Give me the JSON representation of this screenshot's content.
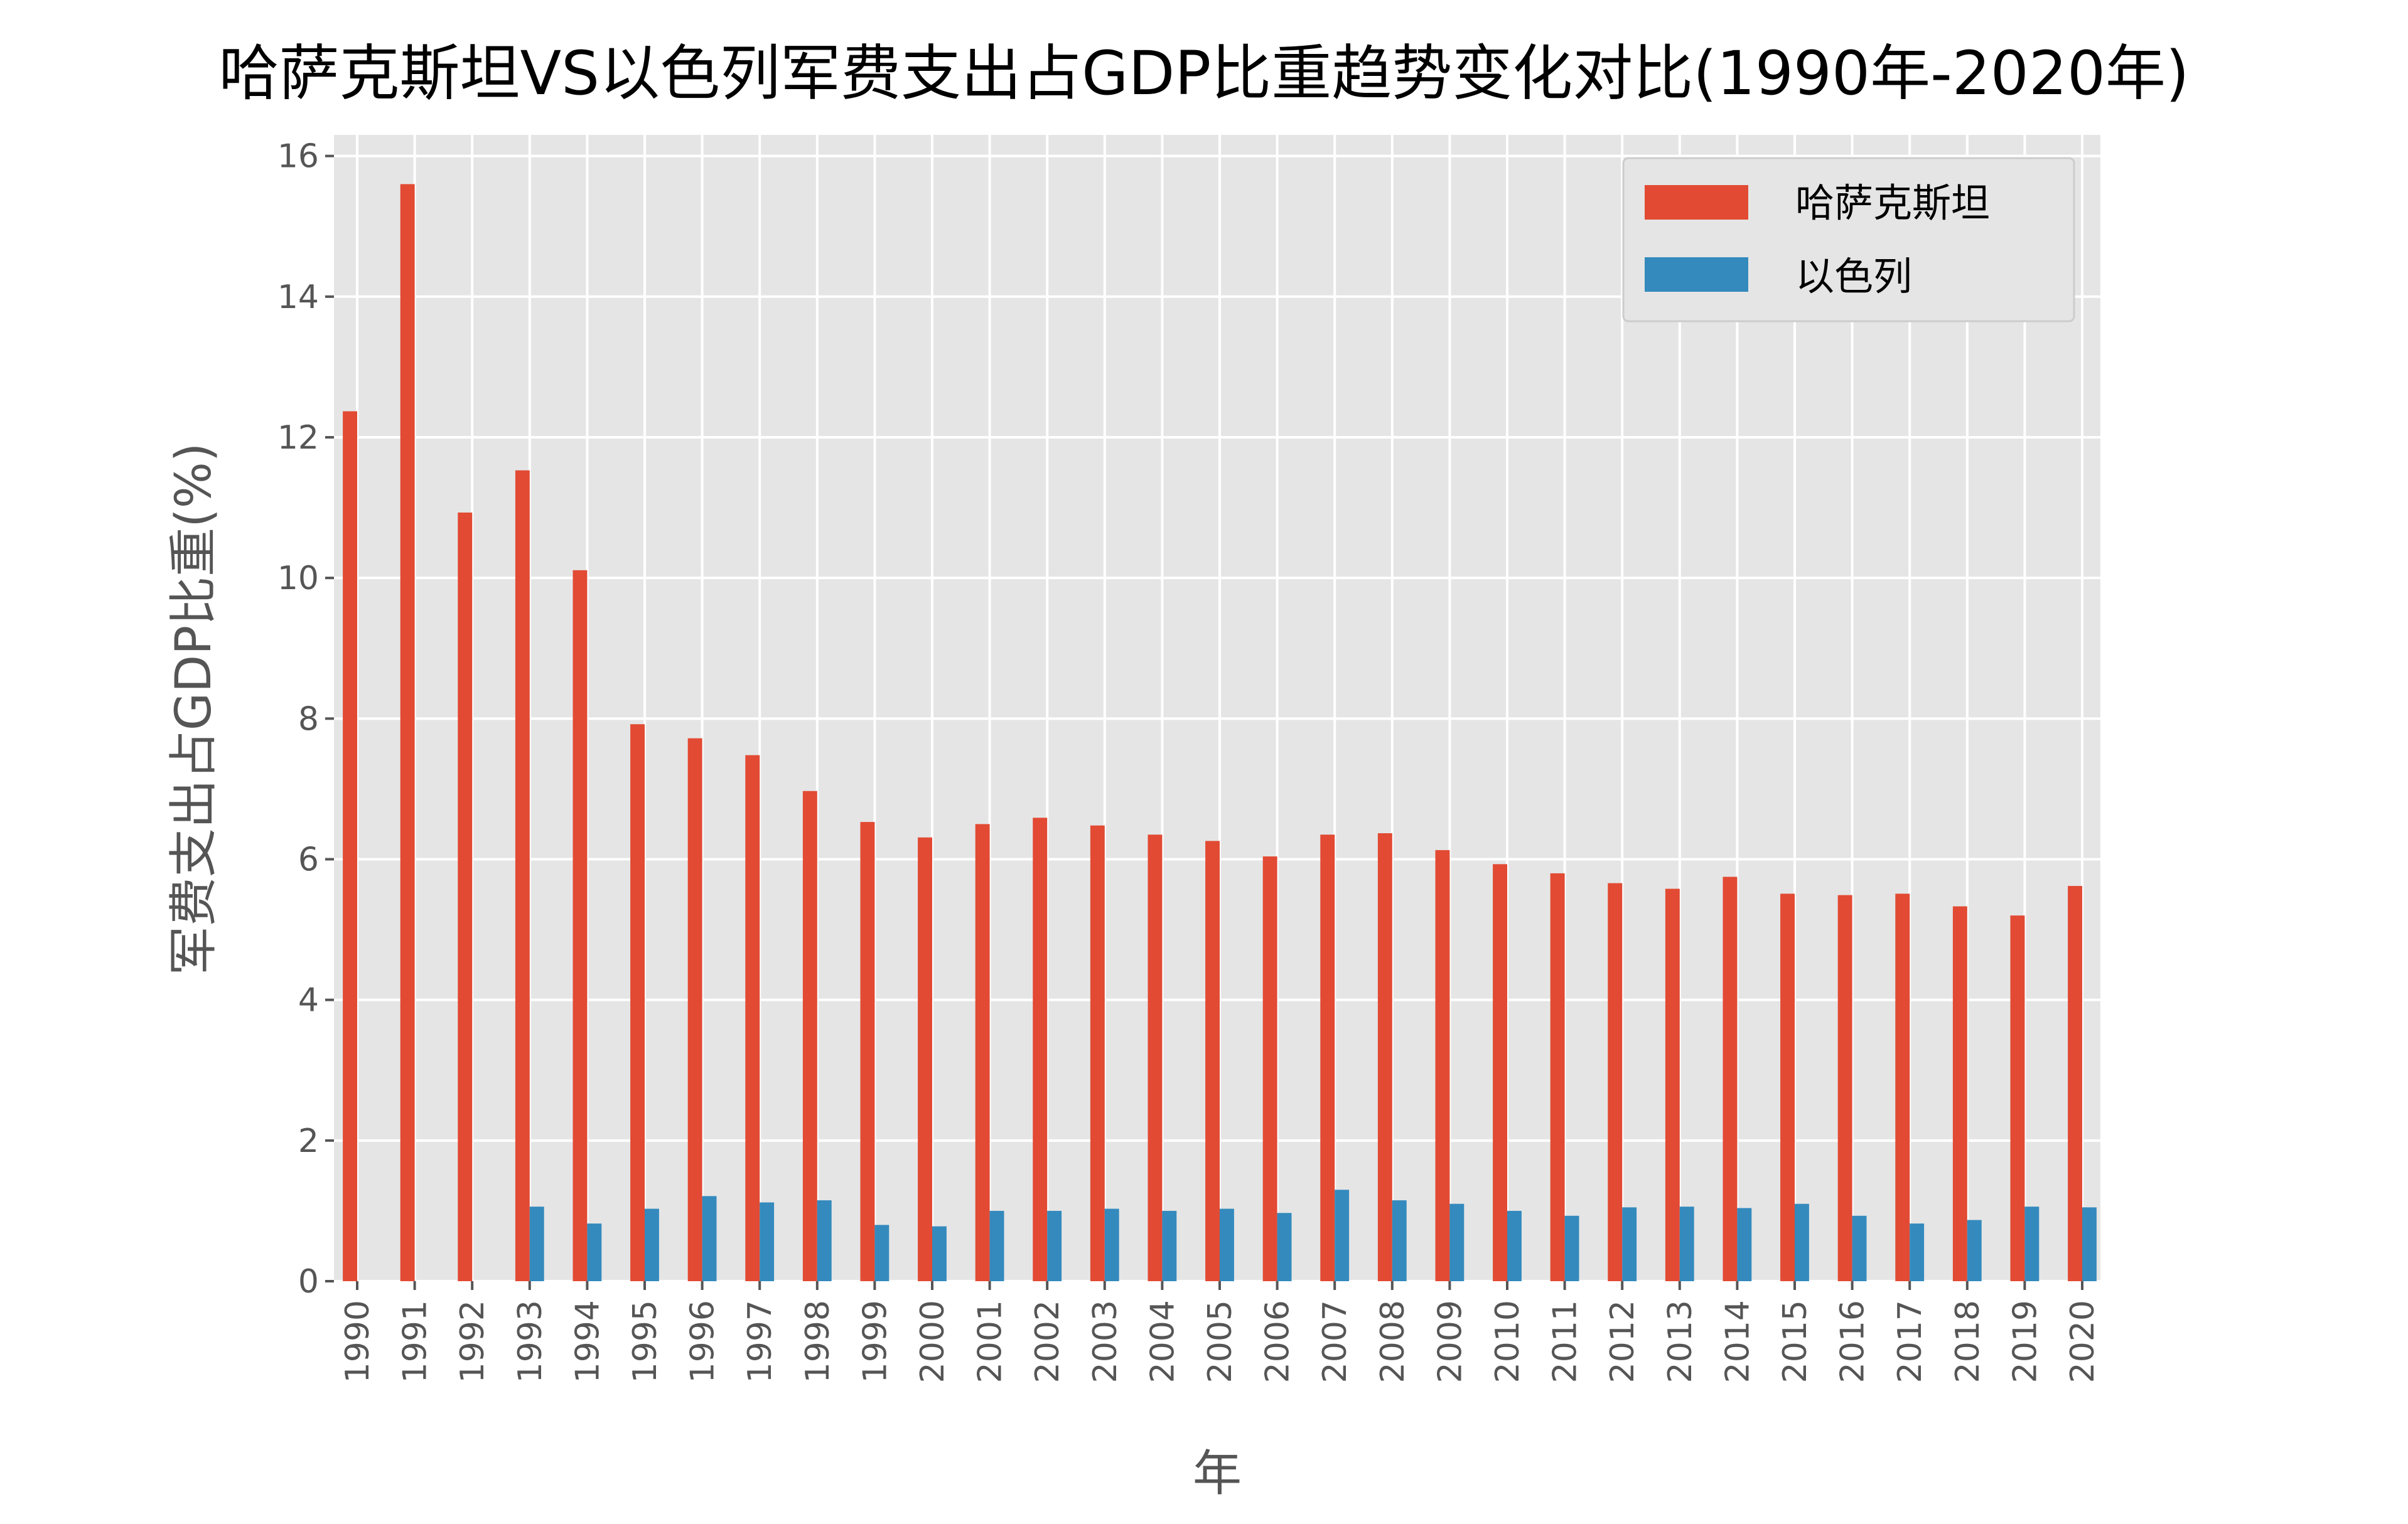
{
  "chart_data": {
    "type": "bar",
    "title": "哈萨克斯坦VS以色列军费支出占GDP比重趋势变化对比(1990年-2020年)",
    "xlabel": "年",
    "ylabel": "军费支出占GDP比重(%)",
    "ylim": [
      0,
      16.3
    ],
    "yticks": [
      0,
      2,
      4,
      6,
      8,
      10,
      12,
      14,
      16
    ],
    "grid": true,
    "legend_position": "top-right",
    "categories": [
      "1990",
      "1991",
      "1992",
      "1993",
      "1994",
      "1995",
      "1996",
      "1997",
      "1998",
      "1999",
      "2000",
      "2001",
      "2002",
      "2003",
      "2004",
      "2005",
      "2006",
      "2007",
      "2008",
      "2009",
      "2010",
      "2011",
      "2012",
      "2013",
      "2014",
      "2015",
      "2016",
      "2017",
      "2018",
      "2019",
      "2020"
    ],
    "series": [
      {
        "name": "哈萨克斯坦",
        "color": "#E24A33",
        "values": [
          12.37,
          15.6,
          10.93,
          11.53,
          10.11,
          7.92,
          7.72,
          7.48,
          6.97,
          6.53,
          6.31,
          6.5,
          6.59,
          6.48,
          6.35,
          6.26,
          6.04,
          6.35,
          6.37,
          6.13,
          5.93,
          5.8,
          5.66,
          5.58,
          5.75,
          5.51,
          5.49,
          5.51,
          5.33,
          5.2,
          5.62
        ]
      },
      {
        "name": "以色列",
        "color": "#348ABD",
        "values": [
          null,
          null,
          null,
          1.06,
          0.82,
          1.03,
          1.21,
          1.12,
          1.15,
          0.8,
          0.78,
          1.0,
          1.0,
          1.03,
          1.0,
          1.03,
          0.97,
          1.3,
          1.15,
          1.1,
          1.0,
          0.93,
          1.05,
          1.06,
          1.04,
          1.1,
          0.93,
          0.82,
          0.87,
          1.06,
          1.05
        ]
      }
    ]
  }
}
